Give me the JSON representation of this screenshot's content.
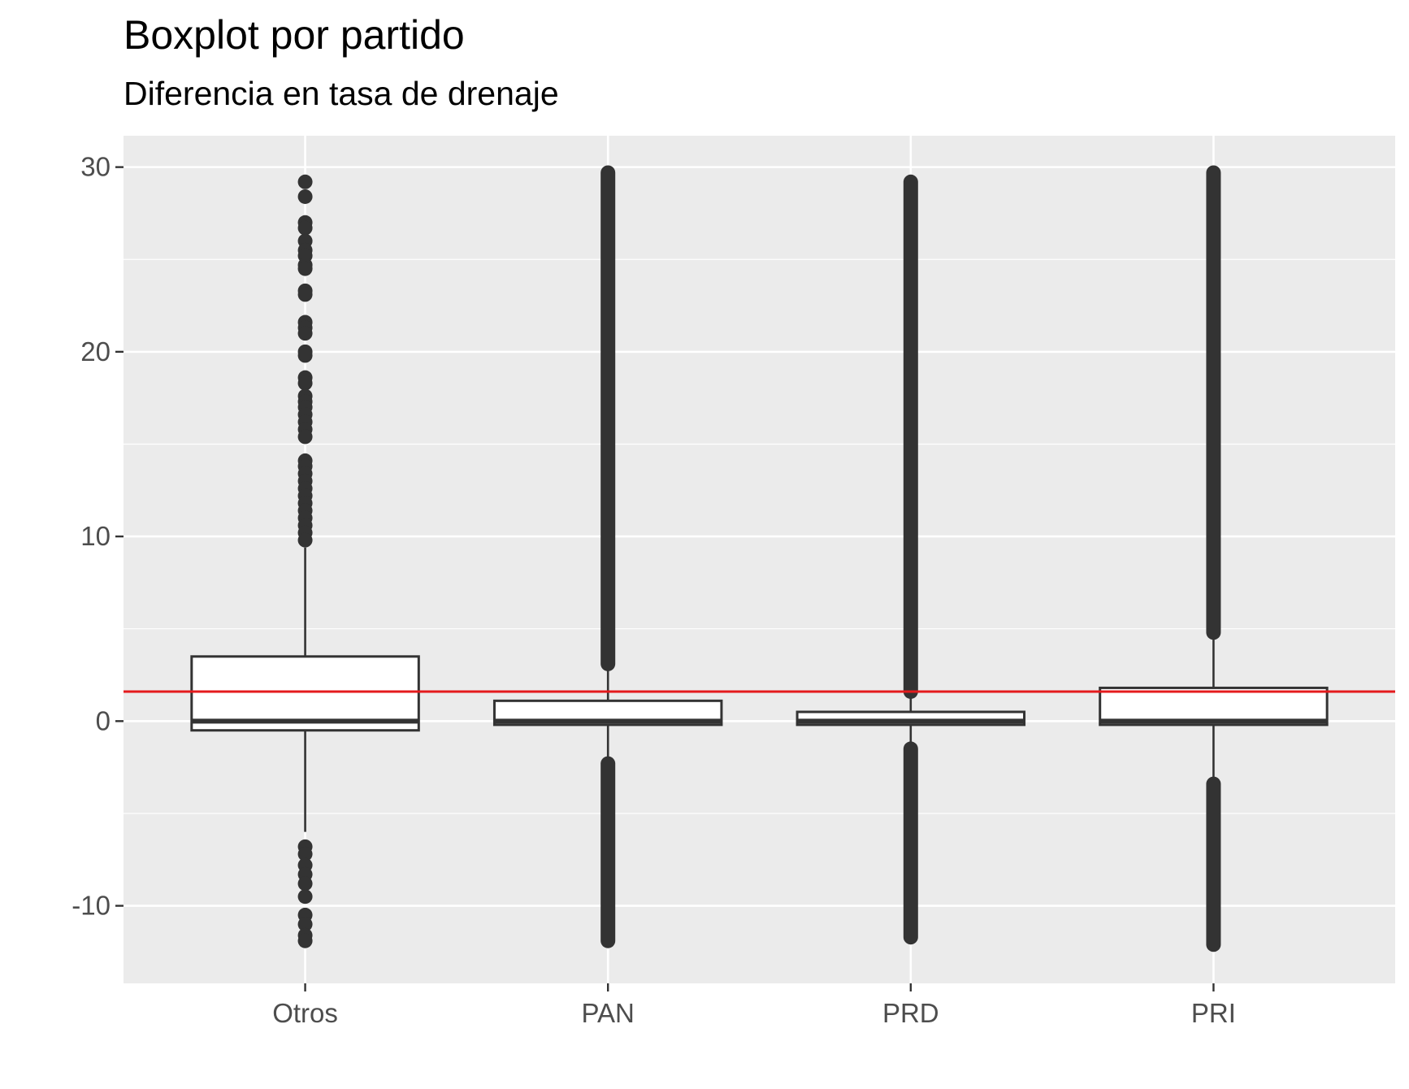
{
  "chart_data": {
    "type": "boxplot",
    "title": "Boxplot por partido",
    "subtitle": "Diferencia en tasa de drenaje",
    "xlabel": "",
    "ylabel": "",
    "ylim": [
      -14.2,
      31.7
    ],
    "yticks": [
      -10,
      0,
      10,
      20,
      30
    ],
    "ytick_labels": [
      "-10",
      "0",
      "10",
      "20",
      "30"
    ],
    "grid": true,
    "reference_line": {
      "y": 1.6,
      "color": "#e41a1c"
    },
    "categories": [
      "Otros",
      "PAN",
      "PRD",
      "PRI"
    ],
    "boxes": [
      {
        "category": "Otros",
        "whisker_low": -6.0,
        "q1": -0.5,
        "median": 0.0,
        "q3": 3.5,
        "whisker_high": 9.4,
        "outliers": [
          29.2,
          28.4,
          27.0,
          26.7,
          26.0,
          25.5,
          25.2,
          24.7,
          24.5,
          23.3,
          23.1,
          21.6,
          21.3,
          21.0,
          20.0,
          19.8,
          18.6,
          18.3,
          17.6,
          17.3,
          17.0,
          16.6,
          16.2,
          15.8,
          15.4,
          14.1,
          13.8,
          13.4,
          13.0,
          12.6,
          12.2,
          11.8,
          11.4,
          11.0,
          10.6,
          10.2,
          9.8,
          -6.8,
          -7.2,
          -7.8,
          -8.3,
          -8.8,
          -9.5,
          -10.5,
          -11.0,
          -11.6,
          -11.9
        ]
      },
      {
        "category": "PAN",
        "whisker_low": -2.1,
        "q1": -0.2,
        "median": 0.0,
        "q3": 1.1,
        "whisker_high": 2.9,
        "outlier_ranges": [
          [
            3.1,
            29.7
          ],
          [
            -11.9,
            -2.3
          ]
        ]
      },
      {
        "category": "PRD",
        "whisker_low": -1.3,
        "q1": -0.2,
        "median": 0.0,
        "q3": 0.5,
        "whisker_high": 1.3,
        "outlier_ranges": [
          [
            1.6,
            29.2
          ],
          [
            -11.7,
            -1.5
          ]
        ]
      },
      {
        "category": "PRI",
        "whisker_low": -3.2,
        "q1": -0.2,
        "median": 0.0,
        "q3": 1.8,
        "whisker_high": 4.5,
        "outlier_ranges": [
          [
            4.8,
            29.7
          ],
          [
            -12.1,
            -3.4
          ]
        ]
      }
    ]
  }
}
